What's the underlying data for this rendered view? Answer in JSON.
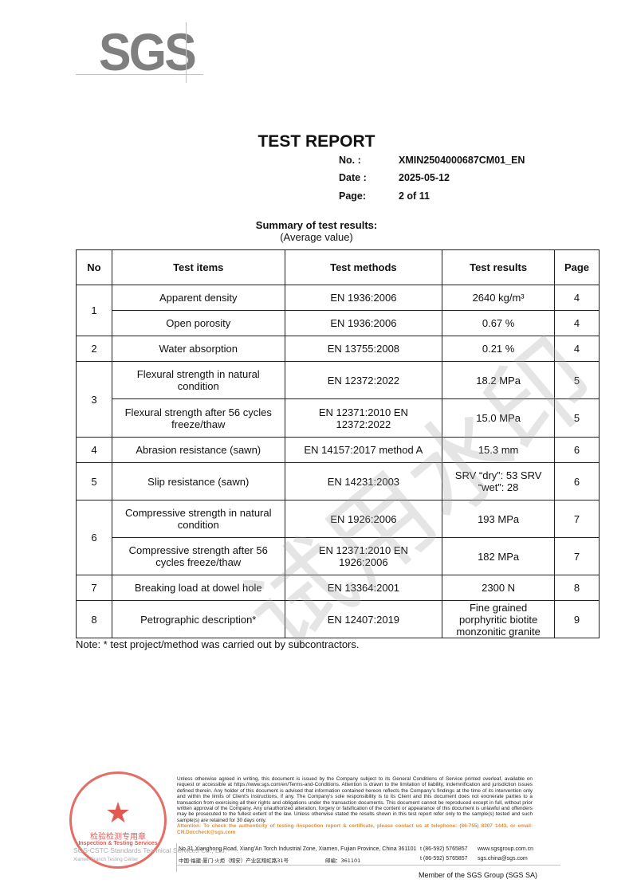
{
  "logo": "SGS",
  "title": "TEST REPORT",
  "meta": [
    {
      "k": "No.  :",
      "v": "XMIN2504000687CM01_EN"
    },
    {
      "k": "Date :",
      "v": "2025-05-12"
    },
    {
      "k": "Page:",
      "v": "2 of  11"
    }
  ],
  "summary_title": "Summary of test results:",
  "summary_sub": "(Average value)",
  "table": {
    "headers": [
      "No",
      "Test items",
      "Test methods",
      "Test results",
      "Page"
    ],
    "rows": [
      {
        "no": "1",
        "item": "Apparent density",
        "method": "EN 1936:2006",
        "result": "2640 kg/m³",
        "page": "4"
      },
      {
        "item": "Open porosity",
        "method": "EN 1936:2006",
        "result": "0.67 %",
        "page": "4"
      },
      {
        "no": "2",
        "item": "Water absorption",
        "method": "EN 13755:2008",
        "result": "0.21 %",
        "page": "4"
      },
      {
        "no": "3",
        "item": "Flexural strength in natural condition",
        "method": "EN 12372:2022",
        "result": "18.2 MPa",
        "page": "5"
      },
      {
        "item": "Flexural strength after 56 cycles freeze/thaw",
        "method": "EN 12371:2010 EN 12372:2022",
        "result": "15.0 MPa",
        "page": "5"
      },
      {
        "no": "4",
        "item": "Abrasion resistance (sawn)",
        "method": "EN 14157:2017 method A",
        "result": "15.3 mm",
        "page": "6"
      },
      {
        "no": "5",
        "item": "Slip resistance (sawn)",
        "method": "EN 14231:2003",
        "result": "SRV “dry”: 53 SRV “wet”: 28",
        "page": "6"
      },
      {
        "no": "6",
        "item": "Compressive strength in natural condition",
        "method": "EN 1926:2006",
        "result": "193 MPa",
        "page": "7"
      },
      {
        "item": "Compressive strength after 56 cycles freeze/thaw",
        "method": "EN 12371:2010 EN 1926:2006",
        "result": "182 MPa",
        "page": "7"
      },
      {
        "no": "7",
        "item": "Breaking load at dowel hole",
        "method": "EN 13364:2001",
        "result": "2300 N",
        "page": "8"
      },
      {
        "no": "8",
        "item": "Petrographic description*",
        "method": "EN 12407:2019",
        "result": "Fine grained porphyritic biotite monzonitic granite",
        "page": "9"
      }
    ]
  },
  "note": "Note: * test project/method was carried out by subcontractors.",
  "watermark": "试用水印",
  "footer": {
    "disclaimer": "Unless otherwise agreed in writing, this document is issued by the Company subject to its General Conditions of Service printed overleaf, available on request or accessible at https://www.sgs.com/en/Terms-and-Conditions. Attention is drawn to the limitation of liability, indemnification and jurisdiction issues defined therein. Any holder of this document is advised that information contained hereon reflects the Company's findings at the time of its intervention only and within the limits of Client's instructions, if any. The Company's sole responsibility is to its Client and this document does not exonerate parties to a transaction from exercising all their rights and obligations under the transaction documents. This document cannot be reproduced except in full, without prior written approval of the Company. Any unauthorized alteration, forgery or falsification of the content or appearance of this document is unlawful and offenders may be prosecuted to the fullest extent of the law. Unless otherwise stated the results shown in this test report refer only to the sample(s) tested and such sample(s) are retained for 30 days only.",
    "attention": "Attention: To check the authenticity of testing /inspection report & certificate, please contact us at telephone: (86-755) 8307 1443, or email: CN.Doccheck@sgs.com",
    "addr_en": "No.31 Xianghong Road, Xiang'An Torch Industrial Zone, Xiamen, Fujian Province, China  361101",
    "addr_cn": "中国·福建·厦门·火炬（翔安）产业区翔虹路31号",
    "postcode_cn": "邮编：361101",
    "tel1": "t  (86-592) 5765857",
    "tel2": "t  (86-592) 5765857",
    "web": "www.sgsgroup.com.cn",
    "email": "sgs.china@sgs.com",
    "company1": "SGS-CSTC Standards Technical Services Co., Ltd.",
    "company2": "Xiamen Branch Testing Center",
    "stamp_text": "检验检测专用章",
    "stamp_en": "Inspection & Testing Services",
    "member": "Member of the SGS Group (SGS SA)"
  },
  "colors": {
    "logo_gray": "#7f7f7f",
    "accent_orange": "#e3902f",
    "stamp_red": "#dc3c32"
  }
}
